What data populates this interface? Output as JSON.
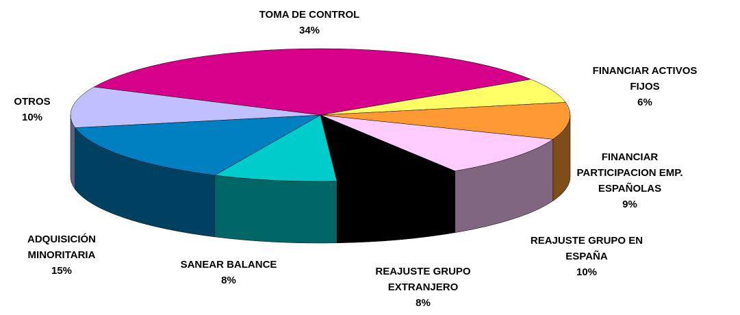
{
  "chart_data": {
    "type": "pie3d",
    "categories": [
      "TOMA DE CONTROL",
      "FINANCIAR ACTIVOS FIJOS",
      "FINANCIAR PARTICIPACION EMP. ESPAÑOLAS",
      "REAJUSTE GRUPO EN ESPAÑA",
      "REAJUSTE GRUPO EXTRANJERO",
      "SANEAR BALANCE",
      "ADQUISICIÓN MINORITARIA",
      "OTROS"
    ],
    "values": [
      34,
      6,
      9,
      10,
      8,
      8,
      15,
      10
    ],
    "value_labels": [
      "34%",
      "6%",
      "9%",
      "10%",
      "8%",
      "8%",
      "15%",
      "10%"
    ],
    "colors": [
      "#d6008a",
      "#ffff66",
      "#ff9933",
      "#ffccff",
      "#000000",
      "#00cccc",
      "#0080c0",
      "#c0c0ff"
    ]
  }
}
